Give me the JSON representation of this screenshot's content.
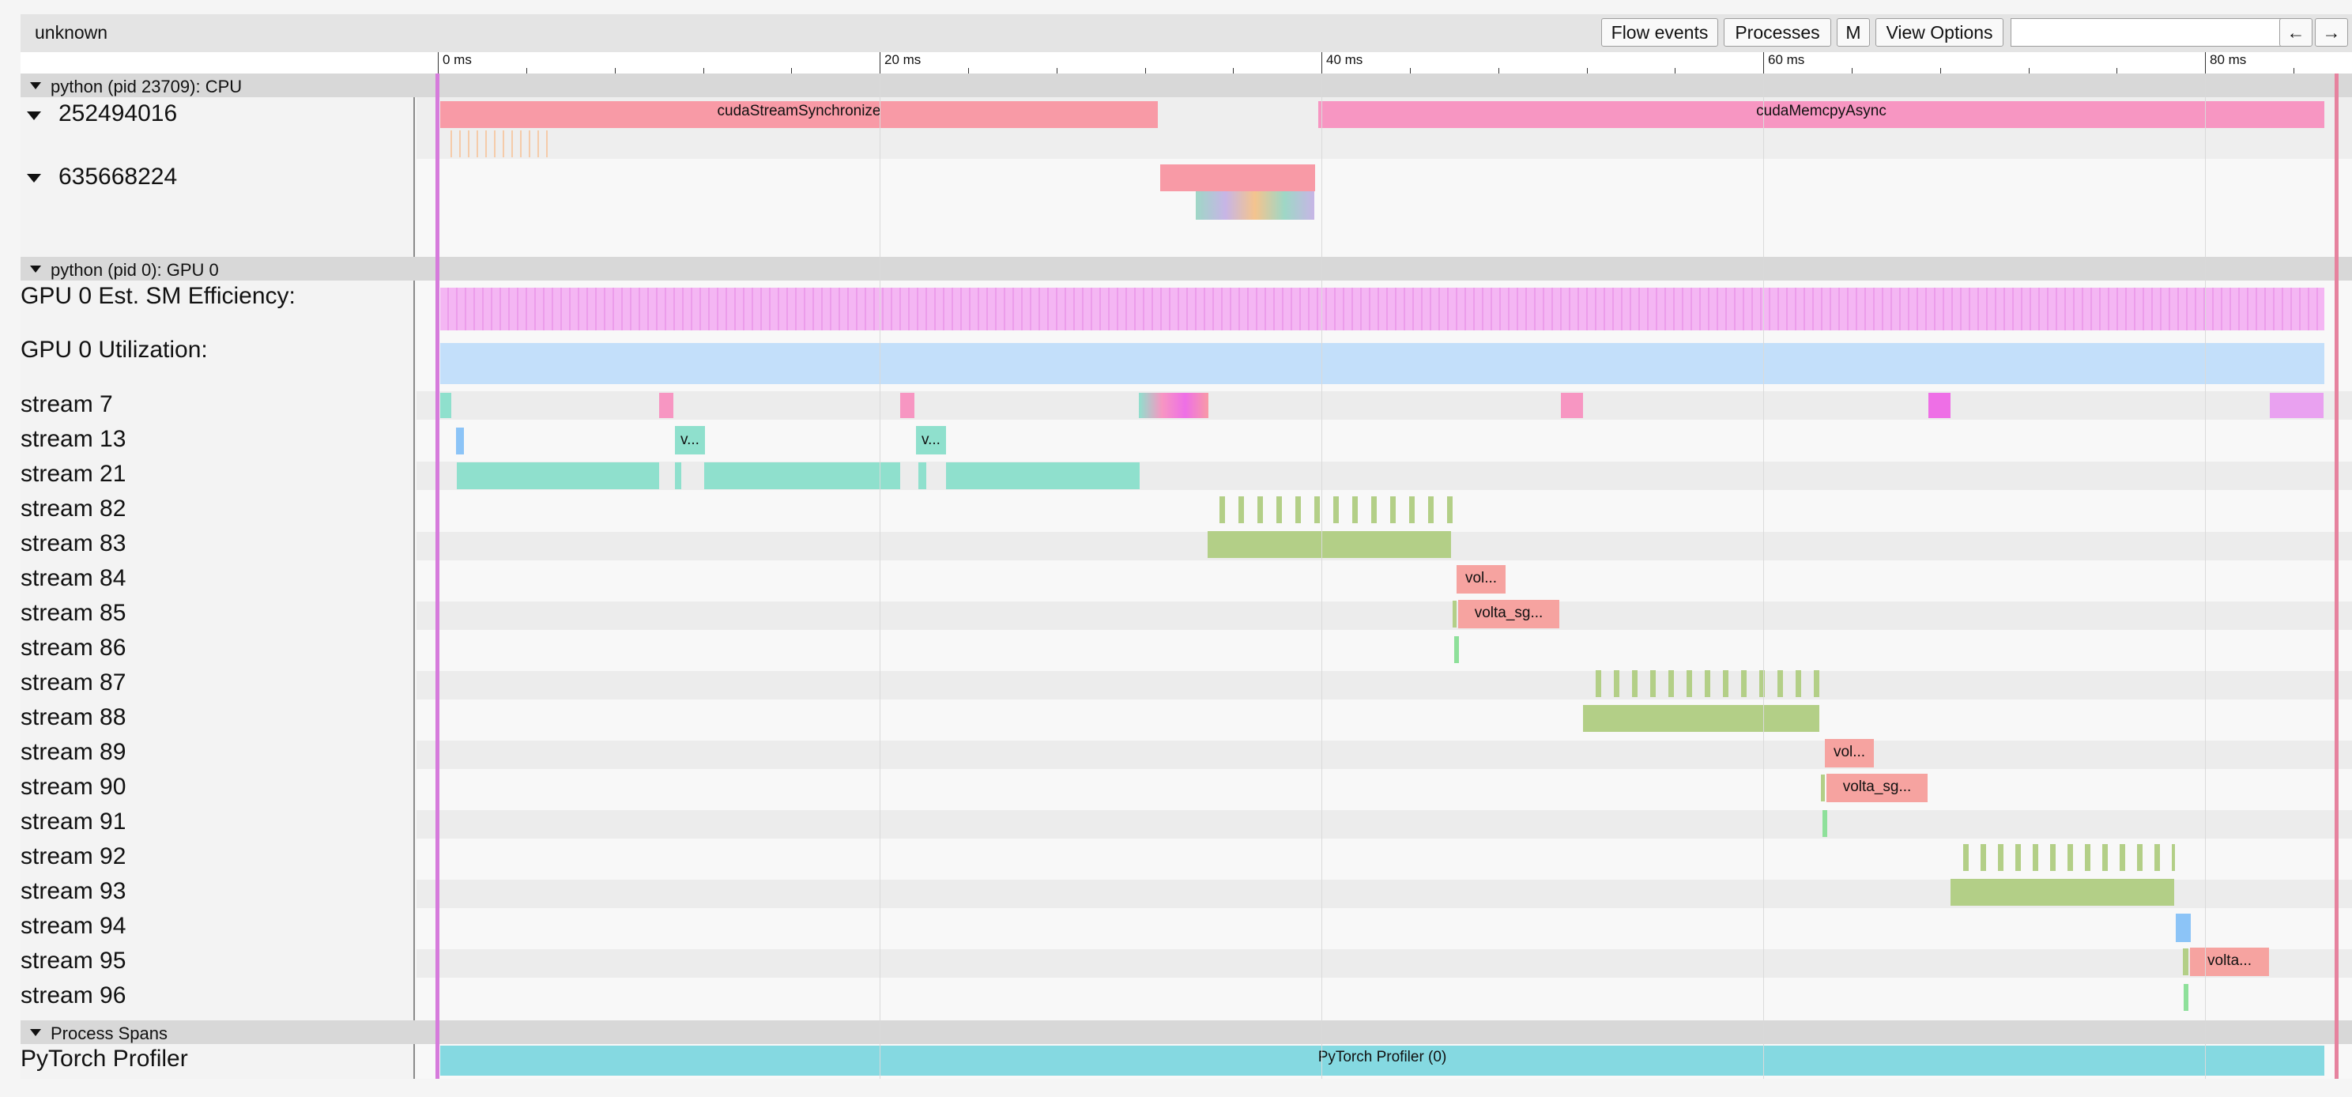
{
  "toolbar": {
    "title": "unknown",
    "buttons": [
      "Flow events",
      "Processes",
      "M",
      "View Options",
      "←",
      "→"
    ]
  },
  "ruler": {
    "labels": [
      "0 ms",
      "20 ms",
      "40 ms",
      "60 ms",
      "80 ms"
    ]
  },
  "processes": [
    {
      "header": "python (pid 23709): CPU",
      "threads": [
        "252494016",
        "635668224"
      ]
    },
    {
      "header": "python (pid 0): GPU 0",
      "counters": [
        "GPU 0 Est. SM Efficiency:",
        "GPU 0 Utilization:"
      ],
      "streams": [
        "stream 7",
        "stream 13",
        "stream 21",
        "stream 82",
        "stream 83",
        "stream 84",
        "stream 85",
        "stream 86",
        "stream 87",
        "stream 88",
        "stream 89",
        "stream 90",
        "stream 91",
        "stream 92",
        "stream 93",
        "stream 94",
        "stream 95",
        "stream 96"
      ]
    },
    {
      "header": "Process Spans",
      "threads": [
        "PyTorch Profiler"
      ]
    }
  ],
  "slices": {
    "cuda_stream_sync": "cudaStreamSynchronize",
    "cuda_memcpy": "cudaMemcpyAsync",
    "s13_a": "v...",
    "s13_b": "v...",
    "s84": "vol...",
    "s85": "volta_sg...",
    "s89": "vol...",
    "s90": "volta_sg...",
    "s95": "volta...",
    "profiler": "PyTorch Profiler (0)"
  },
  "colors": {
    "pink": "#f89aa6",
    "magenta": "#f796c2",
    "sm_eff": "#f4b6f3",
    "util": "#c3dffa",
    "teal": "#8fe0cd",
    "green": "#b3cf87",
    "salmon": "#f6a3a0",
    "blue": "#8cc4f7",
    "cyan": "#85d9e1"
  }
}
